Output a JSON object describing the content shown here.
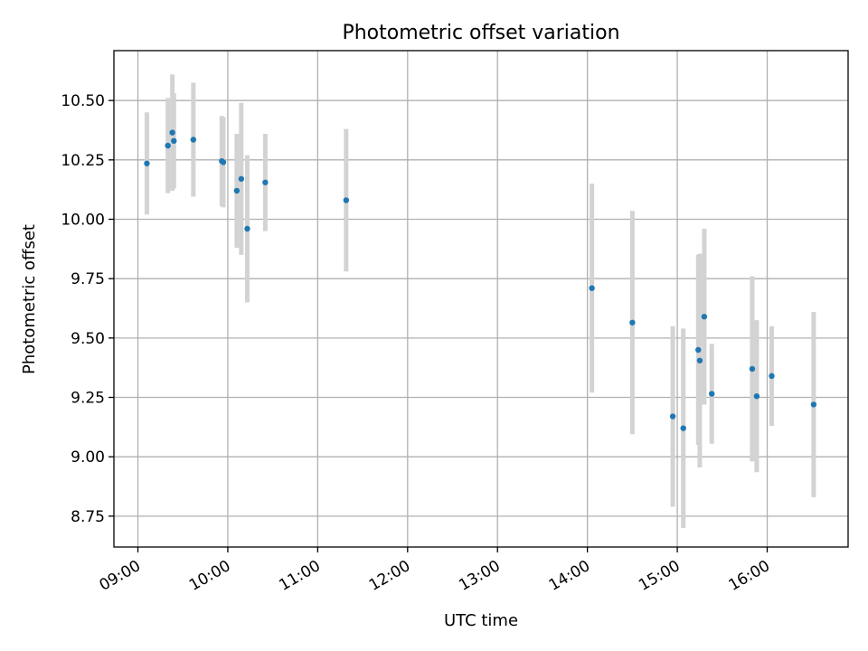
{
  "chart_data": {
    "type": "scatter",
    "title": "Photometric offset variation",
    "xlabel": "UTC time",
    "ylabel": "Photometric offset",
    "xlim": [
      "08:44",
      "16:54"
    ],
    "ylim": [
      8.62,
      10.71
    ],
    "x_ticks": [
      "09:00",
      "10:00",
      "11:00",
      "12:00",
      "13:00",
      "14:00",
      "15:00",
      "16:00"
    ],
    "y_ticks": [
      "8.75",
      "9.00",
      "9.25",
      "9.50",
      "9.75",
      "10.00",
      "10.25",
      "10.50"
    ],
    "grid": true,
    "colors": {
      "point": "#1f77b4",
      "errorbar": "#d3d3d3",
      "grid": "#b0b0b0"
    },
    "series": [
      {
        "points": [
          {
            "t": "09:06",
            "y": 10.235,
            "err": 0.215
          },
          {
            "t": "09:20",
            "y": 10.31,
            "err": 0.2
          },
          {
            "t": "09:23",
            "y": 10.365,
            "err": 0.245
          },
          {
            "t": "09:24",
            "y": 10.33,
            "err": 0.2
          },
          {
            "t": "09:37",
            "y": 10.335,
            "err": 0.24
          },
          {
            "t": "09:56",
            "y": 10.245,
            "err": 0.19
          },
          {
            "t": "09:57",
            "y": 10.24,
            "err": 0.19
          },
          {
            "t": "10:06",
            "y": 10.12,
            "err": 0.24
          },
          {
            "t": "10:09",
            "y": 10.17,
            "err": 0.32
          },
          {
            "t": "10:13",
            "y": 9.96,
            "err": 0.31
          },
          {
            "t": "10:25",
            "y": 10.155,
            "err": 0.205
          },
          {
            "t": "11:19",
            "y": 10.08,
            "err": 0.3
          },
          {
            "t": "14:03",
            "y": 9.71,
            "err": 0.44
          },
          {
            "t": "14:30",
            "y": 9.565,
            "err": 0.47
          },
          {
            "t": "14:57",
            "y": 9.17,
            "err": 0.38
          },
          {
            "t": "15:04",
            "y": 9.12,
            "err": 0.42
          },
          {
            "t": "15:14",
            "y": 9.45,
            "err": 0.4
          },
          {
            "t": "15:15",
            "y": 9.405,
            "err": 0.45
          },
          {
            "t": "15:18",
            "y": 9.59,
            "err": 0.37
          },
          {
            "t": "15:23",
            "y": 9.265,
            "err": 0.21
          },
          {
            "t": "15:50",
            "y": 9.37,
            "err": 0.39
          },
          {
            "t": "15:53",
            "y": 9.255,
            "err": 0.32
          },
          {
            "t": "16:03",
            "y": 9.34,
            "err": 0.21
          },
          {
            "t": "16:31",
            "y": 9.22,
            "err": 0.39
          }
        ]
      }
    ]
  }
}
